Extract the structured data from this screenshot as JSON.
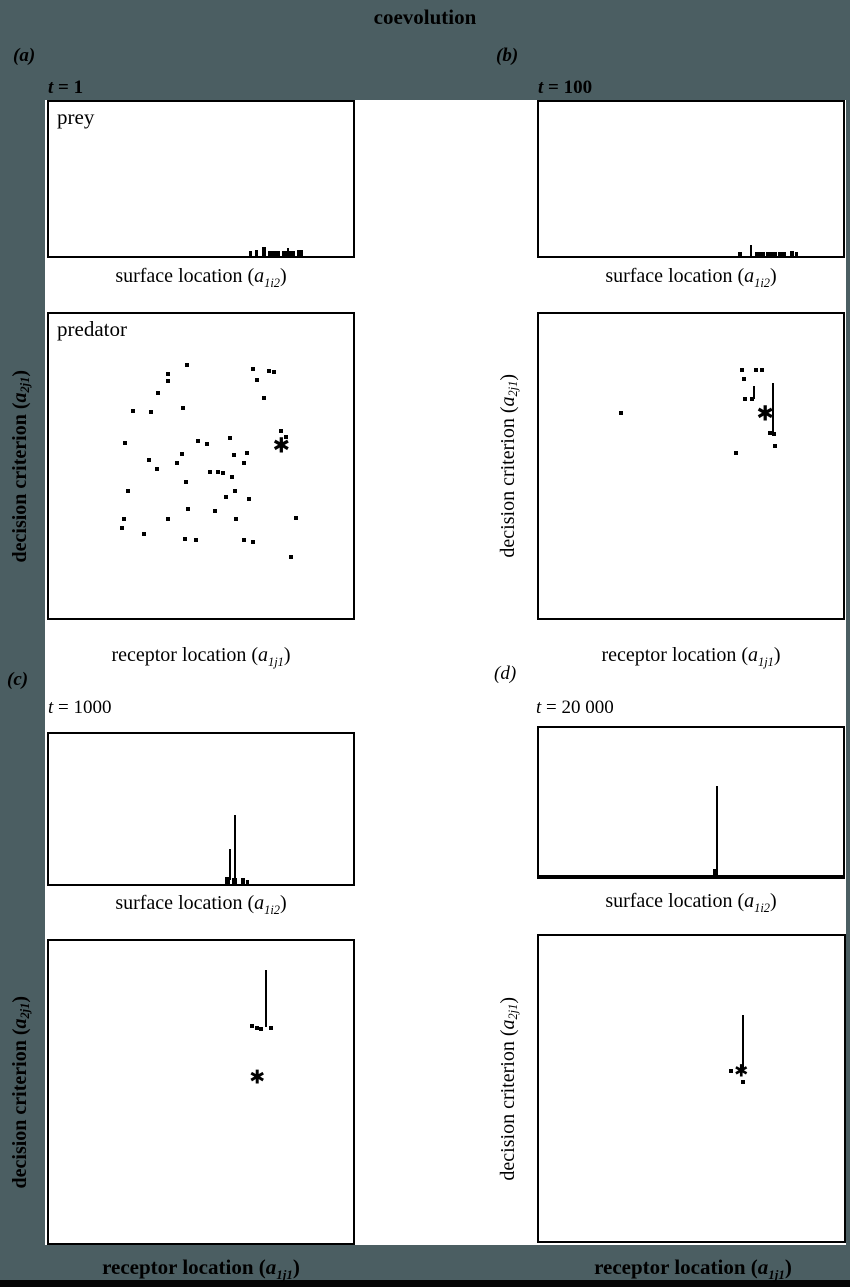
{
  "title": "coevolution",
  "star_glyph": "✱",
  "colors": {
    "canvas_bg": "#4b5e62",
    "figure_bg": "#ffffff",
    "ink": "#000000",
    "bottom_bar": "#050505"
  },
  "labels": {
    "surface": {
      "prefix": "surface location (",
      "var": "a",
      "sub": "1i2",
      "suffix": ")"
    },
    "receptor": {
      "prefix": "receptor location (",
      "var": "a",
      "sub": "1j1",
      "suffix": ")"
    },
    "decision": {
      "prefix": "decision criterion (",
      "var": "a",
      "sub": "2j1",
      "suffix": ")"
    }
  },
  "panels": {
    "a": {
      "letter": "(a)",
      "time_var": "t",
      "time_rest": " = 1",
      "prey_label": "prey",
      "predator_label": "predator"
    },
    "b": {
      "letter": "(b)",
      "time_var": "t",
      "time_rest": " = 100"
    },
    "c": {
      "letter": "(c)",
      "time_var": "t",
      "time_rest": " = 1000"
    },
    "d": {
      "letter": "(d)",
      "time_var": "t",
      "time_rest": " = 20 000"
    }
  },
  "chart_data": [
    {
      "panel": "a",
      "species": "prey",
      "type": "histogram",
      "time": 1,
      "xlabel": "surface location (a1i2)",
      "units": "percent-of-plot-from-top-left",
      "bars_pct": [
        [
          65.9,
          1.0,
          3.2
        ],
        [
          67.9,
          1.0,
          3.8
        ],
        [
          70.1,
          1.3,
          5.7
        ],
        [
          72.1,
          3.9,
          3.2
        ],
        [
          76.6,
          4.2,
          3.2
        ],
        [
          78.2,
          0.6,
          5.1
        ],
        [
          81.5,
          1.9,
          3.8
        ]
      ]
    },
    {
      "panel": "b",
      "species": "prey",
      "type": "histogram",
      "time": 100,
      "xlabel": "surface location (a1i2)",
      "units": "percent-of-plot-from-top-left",
      "bars_pct": [
        [
          65.6,
          1.3,
          2.5
        ],
        [
          69.5,
          0.6,
          7.0
        ],
        [
          71.1,
          3.2,
          2.5
        ],
        [
          74.7,
          3.6,
          2.5
        ],
        [
          78.6,
          2.6,
          2.5
        ],
        [
          82.5,
          1.3,
          3.2
        ],
        [
          84.1,
          1.0,
          2.5
        ]
      ]
    },
    {
      "panel": "a",
      "species": "predator",
      "type": "scatter",
      "time": 1,
      "xlabel": "receptor location (a1j1)",
      "ylabel": "decision criterion (a2j1)",
      "units": "percent-of-plot-from-top-left",
      "points_pct": [
        [
          45.3,
          16.9
        ],
        [
          39.2,
          19.8
        ],
        [
          67.0,
          18.2
        ],
        [
          72.5,
          18.8
        ],
        [
          74.1,
          19.2
        ],
        [
          39.2,
          22.1
        ],
        [
          68.3,
          21.8
        ],
        [
          35.9,
          26.0
        ],
        [
          70.6,
          27.6
        ],
        [
          27.5,
          31.8
        ],
        [
          33.7,
          32.1
        ],
        [
          44.0,
          30.8
        ],
        [
          24.9,
          42.5
        ],
        [
          48.9,
          41.6
        ],
        [
          52.1,
          42.9
        ],
        [
          59.5,
          40.9
        ],
        [
          76.4,
          38.6
        ],
        [
          78.0,
          40.3
        ],
        [
          60.8,
          46.4
        ],
        [
          65.0,
          45.8
        ],
        [
          64.1,
          49.0
        ],
        [
          33.0,
          48.1
        ],
        [
          42.1,
          49.0
        ],
        [
          43.7,
          46.1
        ],
        [
          35.6,
          51.0
        ],
        [
          52.8,
          51.9
        ],
        [
          55.7,
          51.9
        ],
        [
          57.3,
          52.3
        ],
        [
          60.2,
          53.6
        ],
        [
          45.0,
          55.2
        ],
        [
          25.9,
          58.1
        ],
        [
          58.3,
          60.1
        ],
        [
          61.2,
          58.1
        ],
        [
          65.7,
          60.7
        ],
        [
          45.6,
          64.0
        ],
        [
          54.7,
          64.9
        ],
        [
          24.6,
          67.5
        ],
        [
          39.2,
          67.5
        ],
        [
          61.5,
          67.5
        ],
        [
          81.2,
          67.2
        ],
        [
          23.9,
          70.5
        ],
        [
          31.1,
          72.4
        ],
        [
          44.7,
          74.0
        ],
        [
          48.5,
          74.4
        ],
        [
          64.1,
          74.4
        ],
        [
          67.0,
          75.0
        ],
        [
          79.6,
          79.9
        ]
      ],
      "star_pct": [
        76.4,
        43.5
      ],
      "star_size": 21
    },
    {
      "panel": "b",
      "species": "predator",
      "type": "scatter",
      "time": 100,
      "xlabel": "receptor location (a1j1)",
      "ylabel": "decision criterion (a2j1)",
      "units": "percent-of-plot-from-top-left",
      "points_pct": [
        [
          26.9,
          32.5
        ],
        [
          66.6,
          18.5
        ],
        [
          71.4,
          18.5
        ],
        [
          73.4,
          18.5
        ],
        [
          67.5,
          21.4
        ],
        [
          67.9,
          27.9
        ],
        [
          70.1,
          27.9
        ],
        [
          76.0,
          39.0
        ],
        [
          77.3,
          39.6
        ],
        [
          77.6,
          43.5
        ],
        [
          64.9,
          45.8
        ]
      ],
      "lines_pct": [
        [
          76.6,
          22.7,
          39.0
        ],
        [
          70.4,
          23.7,
          27.9
        ]
      ],
      "star_pct": [
        74.4,
        32.8
      ],
      "star_size": 21
    },
    {
      "panel": "c",
      "species": "prey",
      "type": "histogram",
      "time": 1000,
      "xlabel": "surface location (a1i2)",
      "units": "percent-of-plot-from-top-left",
      "lines_pct": [
        [
          61.0,
          53.9,
          98.5
        ],
        [
          59.1,
          76.6,
          97.5
        ]
      ],
      "bars_pct": [
        [
          57.8,
          1.9,
          4.5
        ],
        [
          60.1,
          1.6,
          3.9
        ],
        [
          63.0,
          1.6,
          3.9
        ],
        [
          64.9,
          1.0,
          2.6
        ]
      ]
    },
    {
      "panel": "d",
      "species": "prey",
      "type": "histogram",
      "time": 20000,
      "xlabel": "surface location (a1i2)",
      "units": "percent-of-plot-from-top-left",
      "lines_pct": [
        [
          58.1,
          39.2,
          98.0
        ]
      ],
      "bars_pct": [
        [
          57.1,
          1.9,
          3.9
        ]
      ]
    },
    {
      "panel": "c",
      "species": "predator",
      "type": "scatter",
      "time": 1000,
      "xlabel": "receptor location (a1j1)",
      "ylabel": "decision criterion (a2j1)",
      "units": "percent-of-plot-from-top-left",
      "points_pct": [
        [
          66.9,
          28.1
        ],
        [
          68.3,
          28.8
        ],
        [
          69.8,
          29.1
        ],
        [
          73.1,
          28.8
        ]
      ],
      "lines_pct": [
        [
          71.1,
          9.5,
          28.4
        ]
      ],
      "star_pct": [
        68.5,
        45.4
      ],
      "star_size": 19
    },
    {
      "panel": "d",
      "species": "predator",
      "type": "scatter",
      "time": 20000,
      "xlabel": "receptor location (a1j1)",
      "ylabel": "decision criterion (a2j1)",
      "units": "percent-of-plot-from-top-left",
      "points_pct": [
        [
          62.8,
          44.3
        ],
        [
          67.0,
          47.9
        ]
      ],
      "lines_pct": [
        [
          66.7,
          25.9,
          44.0
        ]
      ],
      "star_pct": [
        66.3,
        44.7
      ],
      "star_size": 17
    }
  ]
}
